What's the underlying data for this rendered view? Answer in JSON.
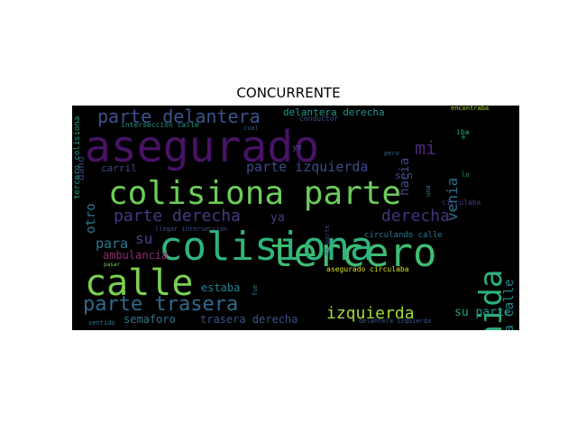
{
  "title": "CONCURRENTE",
  "words": [
    {
      "text": "asegurado",
      "orient": "h"
    },
    {
      "text": "tercero",
      "orient": "h"
    },
    {
      "text": "colisiona",
      "orient": "h"
    },
    {
      "text": "colisiona parte",
      "orient": "h"
    },
    {
      "text": "calle",
      "orient": "h"
    },
    {
      "text": "avenida",
      "orient": "v"
    },
    {
      "text": "parte delantera",
      "orient": "h"
    },
    {
      "text": "parte trasera",
      "orient": "h"
    },
    {
      "text": "parte derecha",
      "orient": "h"
    },
    {
      "text": "derecha",
      "orient": "h"
    },
    {
      "text": "izquierda",
      "orient": "h"
    },
    {
      "text": "parte izquierda",
      "orient": "h"
    },
    {
      "text": "mi",
      "orient": "h"
    },
    {
      "text": "venia",
      "orient": "v"
    },
    {
      "text": "hacia",
      "orient": "v"
    },
    {
      "text": "circulaba calle",
      "orient": "v"
    },
    {
      "text": "para",
      "orient": "h"
    },
    {
      "text": "su",
      "orient": "h"
    },
    {
      "text": "ambulancia",
      "orient": "h"
    },
    {
      "text": "estaba",
      "orient": "h"
    },
    {
      "text": "semaforo",
      "orient": "h"
    },
    {
      "text": "trasera derecha",
      "orient": "h"
    },
    {
      "text": "su parte",
      "orient": "h"
    },
    {
      "text": "delantera derecha",
      "orient": "h"
    },
    {
      "text": "carril",
      "orient": "h"
    },
    {
      "text": "interseccion calle",
      "orient": "h"
    },
    {
      "text": "circulando calle",
      "orient": "h"
    },
    {
      "text": "llegar interseccion",
      "orient": "h"
    },
    {
      "text": "asegurado circulaba",
      "orient": "h"
    },
    {
      "text": "otro",
      "orient": "v"
    },
    {
      "text": "dano",
      "orient": "v"
    },
    {
      "text": "ya",
      "orient": "h"
    },
    {
      "text": "sin",
      "orient": "h"
    },
    {
      "text": "iba",
      "orient": "h"
    },
    {
      "text": "conductor",
      "orient": "h"
    },
    {
      "text": "cual",
      "orient": "h"
    },
    {
      "text": "lo",
      "orient": "h"
    },
    {
      "text": "encontraba",
      "orient": "h"
    },
    {
      "text": "sentido",
      "orient": "h"
    },
    {
      "text": "delantera izquierda",
      "orient": "h"
    },
    {
      "text": "pero",
      "orient": "h"
    },
    {
      "text": "e",
      "orient": "h"
    },
    {
      "text": "yo",
      "orient": "h"
    },
    {
      "text": "fue",
      "orient": "v"
    },
    {
      "text": "pasar",
      "orient": "h"
    },
    {
      "text": "mi parte",
      "orient": "v"
    },
    {
      "text": "circulaba",
      "orient": "h"
    },
    {
      "text": "una",
      "orient": "v"
    },
    {
      "text": "tercero colisiona",
      "orient": "v"
    }
  ]
}
